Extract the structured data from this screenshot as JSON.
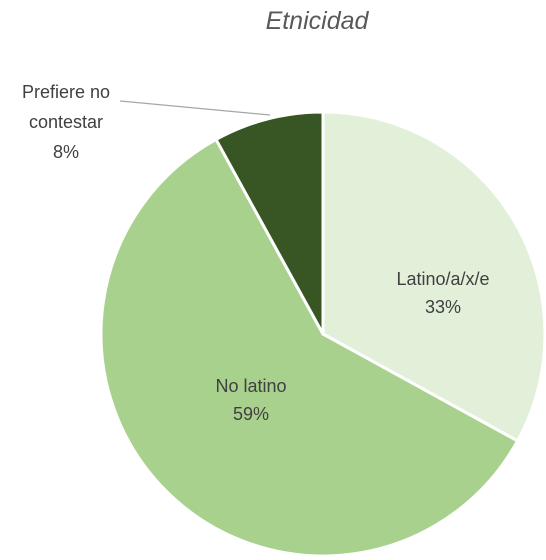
{
  "chart_data": {
    "type": "pie",
    "title": "Etnicidad",
    "slices": [
      {
        "label": "Latino/a/x/e",
        "value": 33,
        "display": "33%",
        "color": "#e2efd9"
      },
      {
        "label": "No latino",
        "value": 59,
        "display": "59%",
        "color": "#a9d18e"
      },
      {
        "label_lines": [
          "Prefiere no",
          "contestar"
        ],
        "value": 8,
        "display": "8%",
        "color": "#375623"
      }
    ],
    "start": "12 o'clock, clockwise",
    "legend": "none",
    "data_labels": "category name and percentage"
  }
}
